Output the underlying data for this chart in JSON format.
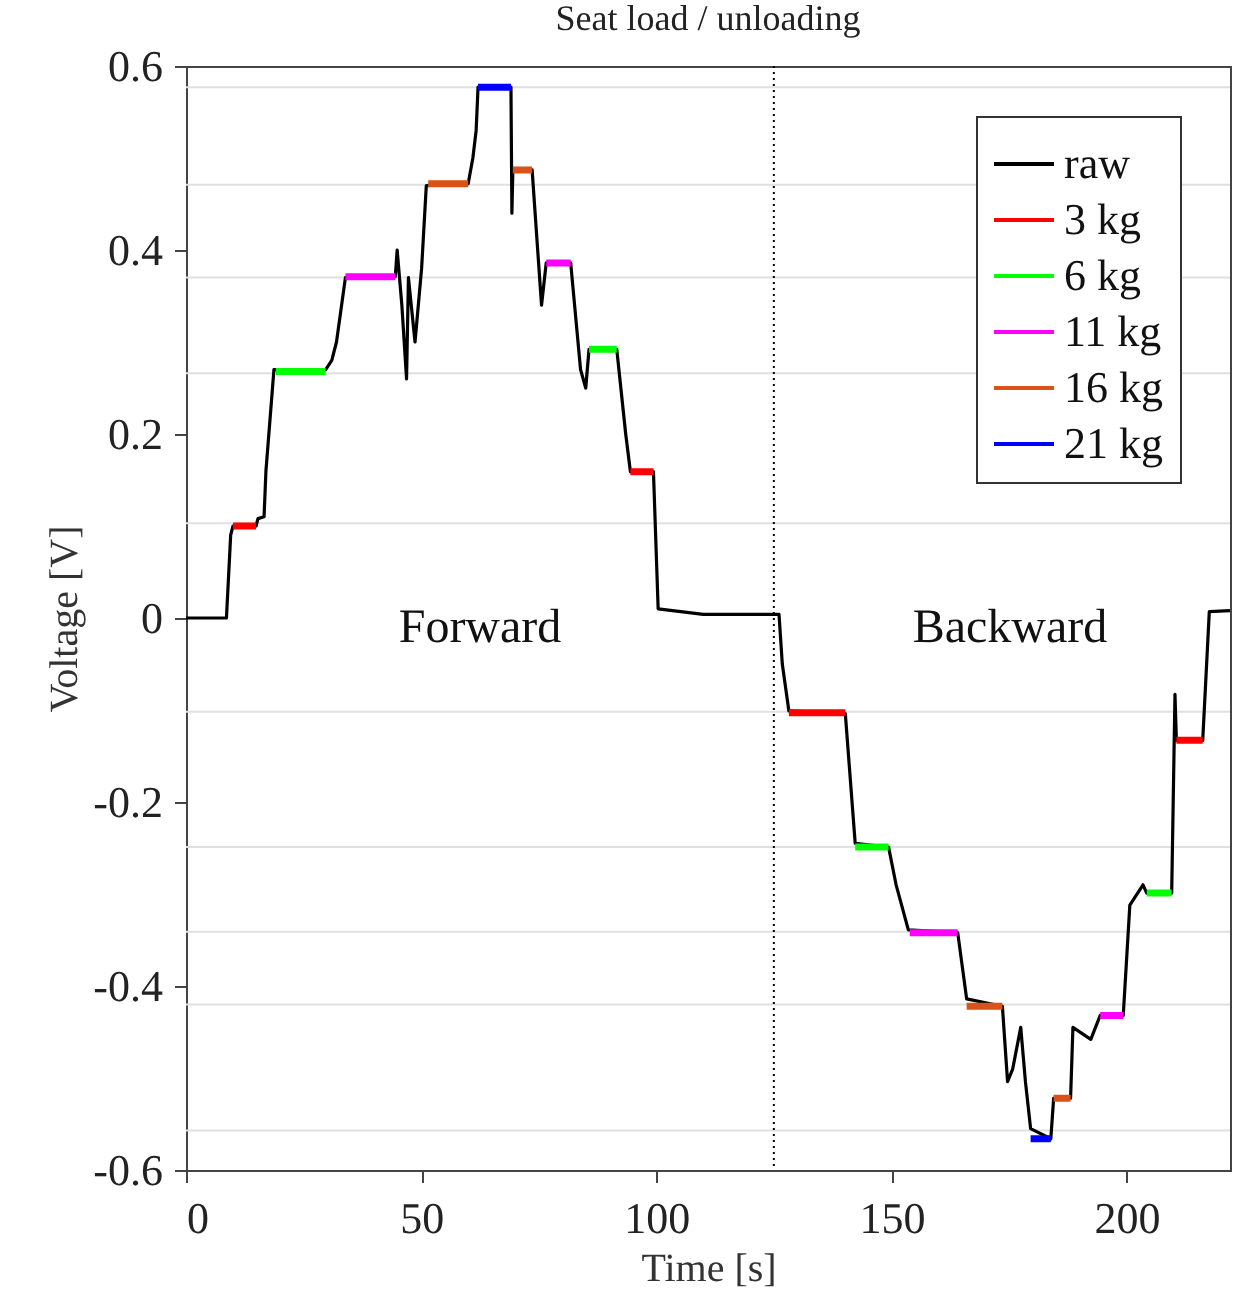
{
  "chart_data": {
    "type": "line",
    "title": "Seat load / unloading",
    "xlabel": "Time [s]",
    "ylabel": "Voltage [V]",
    "xlim": [
      0,
      222
    ],
    "xticks": [
      0,
      50,
      100,
      150,
      200
    ],
    "ylim": [
      -0.6,
      0.6
    ],
    "yticks": [
      -0.6,
      -0.4,
      -0.2,
      0,
      0.2,
      0.4,
      0.6
    ],
    "grid": false,
    "legend": "top right",
    "marker": "none",
    "line_style": "solid",
    "annotations": [
      "Forward",
      "Backward"
    ],
    "ref_lines": [
      {
        "axis": "y",
        "value": 0.577,
        "label": null,
        "color": "#e0e0e0",
        "line_style": "solid"
      },
      {
        "axis": "y",
        "value": 0.471,
        "label": null,
        "color": "#e0e0e0",
        "line_style": "solid"
      },
      {
        "axis": "y",
        "value": 0.37,
        "label": null,
        "color": "#e0e0e0",
        "line_style": "solid"
      },
      {
        "axis": "y",
        "value": 0.266,
        "label": null,
        "color": "#e0e0e0",
        "line_style": "solid"
      },
      {
        "axis": "y",
        "value": 0.103,
        "label": null,
        "color": "#e0e0e0",
        "line_style": "solid"
      },
      {
        "axis": "y",
        "value": -0.102,
        "label": null,
        "color": "#e0e0e0",
        "line_style": "solid"
      },
      {
        "axis": "y",
        "value": -0.249,
        "label": null,
        "color": "#e0e0e0",
        "line_style": "solid"
      },
      {
        "axis": "y",
        "value": -0.341,
        "label": null,
        "color": "#e0e0e0",
        "line_style": "solid"
      },
      {
        "axis": "y",
        "value": -0.42,
        "label": null,
        "color": "#e0e0e0",
        "line_style": "solid"
      },
      {
        "axis": "y",
        "value": -0.557,
        "label": null,
        "color": "#e0e0e0",
        "line_style": "solid"
      },
      {
        "axis": "x",
        "value": 125,
        "label": null,
        "color": "#000000",
        "line_style": "dotted"
      }
    ],
    "series": [
      {
        "name": "raw",
        "color": "#000000",
        "x": [
          0,
          8.6,
          9.5,
          10.0,
          14.9,
          15.3,
          16.6,
          17.0,
          18.7,
          29.7,
          31.0,
          32.0,
          33.9,
          44.5,
          44.9,
          45.9,
          46.9,
          47.3,
          48.7,
          50.1,
          51.1,
          60.0,
          61.0,
          61.7,
          62.1,
          69.1,
          69.3,
          69.5,
          73.6,
          75.6,
          76.6,
          81.8,
          83.9,
          85.0,
          85.7,
          91.6,
          93.5,
          94.5,
          99.4,
          100.4,
          110,
          126.1,
          126.8,
          128.2,
          140.2,
          142.3,
          149.4,
          151,
          153.6,
          164.1,
          166.0,
          173.6,
          174.7,
          175.8,
          177.5,
          178.5,
          179.6,
          183.9,
          184.5,
          188.1,
          188.6,
          192.4,
          194.4,
          199.3,
          200.7,
          203.5,
          204.3,
          209.6,
          210.3,
          210.6,
          216.2,
          217.6,
          222
        ],
        "values": [
          0,
          0,
          0.09,
          0.1,
          0.1,
          0.108,
          0.11,
          0.16,
          0.27,
          0.27,
          0.28,
          0.3,
          0.37,
          0.371,
          0.4,
          0.34,
          0.26,
          0.37,
          0.3,
          0.38,
          0.47,
          0.472,
          0.5,
          0.53,
          0.577,
          0.577,
          0.44,
          0.487,
          0.487,
          0.34,
          0.386,
          0.386,
          0.27,
          0.25,
          0.292,
          0.292,
          0.2,
          0.159,
          0.159,
          0.01,
          0.004,
          0.004,
          -0.05,
          -0.101,
          -0.104,
          -0.245,
          -0.249,
          -0.29,
          -0.339,
          -0.342,
          -0.414,
          -0.422,
          -0.504,
          -0.49,
          -0.445,
          -0.504,
          -0.555,
          -0.566,
          -0.522,
          -0.522,
          -0.445,
          -0.458,
          -0.432,
          -0.432,
          -0.312,
          -0.29,
          -0.299,
          -0.299,
          -0.083,
          -0.133,
          -0.133,
          0.007,
          0.008
        ]
      },
      {
        "name": "3 kg",
        "color": "#ff0000",
        "x": [
          10.0,
          14.9,
          50,
          94.5,
          99.4,
          115,
          128.2,
          140.2,
          170,
          210.6,
          216.2
        ],
        "values": [
          0.1,
          0.1,
          null,
          0.159,
          0.159,
          null,
          -0.103,
          -0.103,
          null,
          -0.133,
          -0.133
        ]
      },
      {
        "name": "6 kg",
        "color": "#00ff00",
        "x": [
          19.1,
          29.7,
          50,
          85.7,
          91.6,
          115,
          142.3,
          149.4,
          180,
          204.3,
          209.6
        ],
        "values": [
          0.268,
          0.268,
          null,
          0.292,
          0.292,
          null,
          -0.249,
          -0.249,
          null,
          -0.299,
          -0.299
        ]
      },
      {
        "name": "11 kg",
        "color": "#ff00ff",
        "x": [
          33.9,
          44.5,
          60,
          76.6,
          81.8,
          115,
          153.9,
          164.1,
          180,
          194.4,
          199.3
        ],
        "values": [
          0.371,
          0.371,
          null,
          0.386,
          0.386,
          null,
          -0.342,
          -0.342,
          null,
          -0.432,
          -0.432
        ]
      },
      {
        "name": "16 kg",
        "color": "#d95319",
        "x": [
          51.5,
          60.0,
          65,
          69.5,
          73.6,
          120,
          166.0,
          173.6,
          180,
          184.5,
          188.1
        ],
        "values": [
          0.472,
          0.472,
          null,
          0.487,
          0.487,
          null,
          -0.422,
          -0.422,
          null,
          -0.522,
          -0.522
        ]
      },
      {
        "name": "21 kg",
        "color": "#0000ff",
        "x": [
          62.1,
          69.1,
          120,
          179.6,
          183.9
        ],
        "values": [
          0.577,
          0.577,
          null,
          -0.566,
          -0.566
        ]
      }
    ]
  }
}
